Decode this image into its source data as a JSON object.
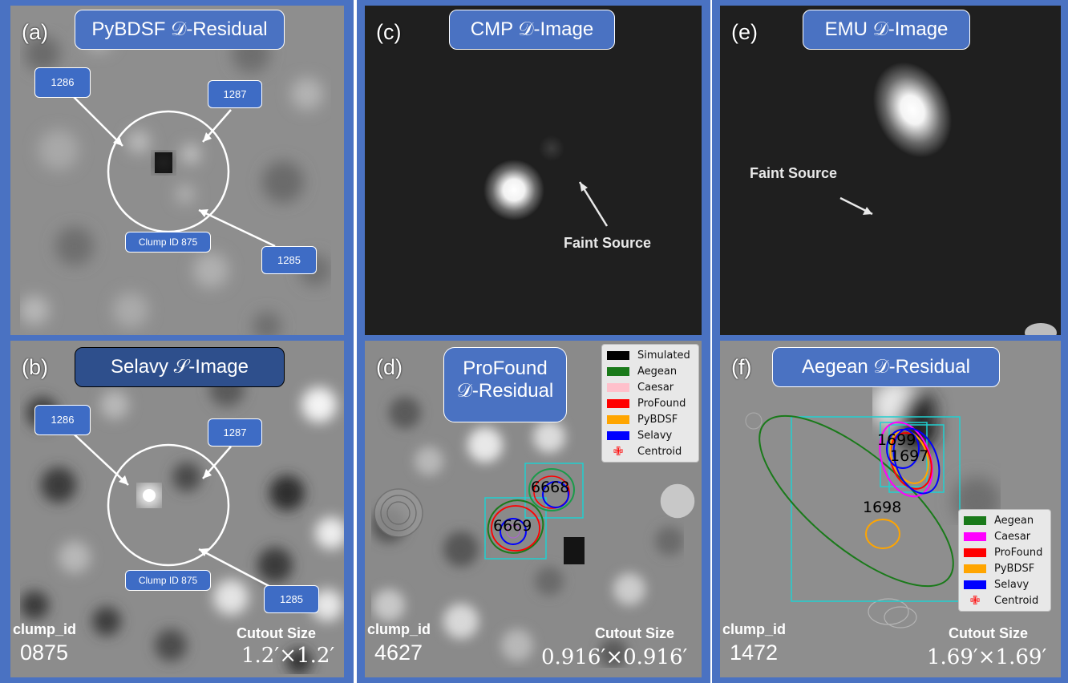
{
  "panels": {
    "a": {
      "letter": "(a)",
      "title": "PyBDSF 𝒟-Residual",
      "callouts": [
        "1286",
        "1287",
        "1285"
      ],
      "clump": "Clump ID 875"
    },
    "b": {
      "letter": "(b)",
      "title": "Selavy 𝒮-Image",
      "callouts": [
        "1286",
        "1287",
        "1285"
      ],
      "clump": "Clump ID 875"
    },
    "c": {
      "letter": "(c)",
      "title": "CMP 𝒟-Image",
      "annotation": "Faint Source"
    },
    "d": {
      "letter": "(d)",
      "title_line1": "ProFound",
      "title_line2": "𝒟-Residual",
      "sources": [
        "6668",
        "6669"
      ],
      "legend": [
        {
          "label": "Simulated",
          "color": "#000000"
        },
        {
          "label": "Aegean",
          "color": "#1a7a1a"
        },
        {
          "label": "Caesar",
          "color": "#ffc0cb"
        },
        {
          "label": "ProFound",
          "color": "#ff0000"
        },
        {
          "label": "PyBDSF",
          "color": "#ffa500"
        },
        {
          "label": "Selavy",
          "color": "#0000ff"
        },
        {
          "label": "Centroid",
          "color": "#ff0000",
          "marker": true
        }
      ]
    },
    "e": {
      "letter": "(e)",
      "title": "EMU 𝒟-Image",
      "annotation": "Faint Source"
    },
    "f": {
      "letter": "(f)",
      "title": "Aegean 𝒟-Residual",
      "sources": [
        "1699",
        "1697",
        "1698"
      ],
      "legend": [
        {
          "label": "Aegean",
          "color": "#1a7a1a"
        },
        {
          "label": "Caesar",
          "color": "#ff00ff"
        },
        {
          "label": "ProFound",
          "color": "#ff0000"
        },
        {
          "label": "PyBDSF",
          "color": "#ffa500"
        },
        {
          "label": "Selavy",
          "color": "#0000ff"
        },
        {
          "label": "Centroid",
          "color": "#ff0000",
          "marker": true
        }
      ]
    }
  },
  "footers": [
    {
      "id_label": "clump_id",
      "id_value": "0875",
      "size_label": "Cutout Size",
      "size_value": "1.2′×1.2′"
    },
    {
      "id_label": "clump_id",
      "id_value": "4627",
      "size_label": "Cutout Size",
      "size_value": "0.916′×0.916′"
    },
    {
      "id_label": "clump_id",
      "id_value": "1472",
      "size_label": "Cutout Size",
      "size_value": "1.69′×1.69′"
    }
  ]
}
